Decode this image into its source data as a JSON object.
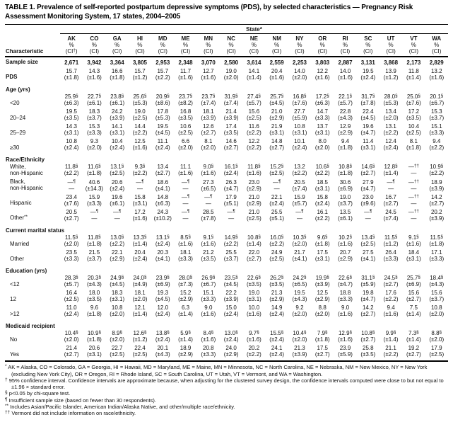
{
  "title": "TABLE 1. Prevalence of self-reported postpartum depressive symptoms (PDS), by selected characteristics — Pregnancy Risk Assessment Monitoring System, 17 states, 2004–2005",
  "table": {
    "char_header": "Characteristic",
    "state_spanner": "State*",
    "subheader_pct": "%",
    "subheader_ci_first": "(CI†)",
    "subheader_ci": "(CI)",
    "columns": [
      "AK",
      "CO",
      "GA",
      "HI",
      "MD",
      "ME",
      "MN",
      "NC",
      "NE",
      "NM",
      "NY",
      "OR",
      "RI",
      "SC",
      "UT",
      "VT",
      "WA"
    ],
    "rows": [
      {
        "label": "Sample size",
        "label_bold": true,
        "values_bold": true,
        "values": [
          "2,671",
          "3,942",
          "3,364",
          "3,805",
          "2,953",
          "2,348",
          "3,070",
          "2,580",
          "3,614",
          "2,559",
          "2,253",
          "3,803",
          "2,887",
          "3,131",
          "3,868",
          "2,173",
          "2,829"
        ]
      },
      {
        "label": "PDS",
        "label_bold": true,
        "values": [
          "15.7",
          "14.3",
          "16.6",
          "15.7",
          "15.7",
          "11.7",
          "12.7",
          "19.0",
          "14.1",
          "20.4",
          "14.0",
          "12.2",
          "14.0",
          "19.5",
          "13.9",
          "11.8",
          "13.2"
        ],
        "cis": [
          "(±1.8)",
          "(±1.6)",
          "(±1.8)",
          "(±1.2)",
          "(±2.2)",
          "(±1.6)",
          "(±1.6)",
          "(±2.0)",
          "(±1.4)",
          "(±1.6)",
          "(±2.0)",
          "(±1.6)",
          "(±1.6)",
          "(±2.4)",
          "(±1.2)",
          "(±1.4)",
          "(±1.6)"
        ]
      },
      {
        "section": "Age (yrs)"
      },
      {
        "label": "<20",
        "indent": true,
        "values": [
          "25.9§",
          "22.7§",
          "23.8§",
          "25.6§",
          "20.9§",
          "23.7§",
          "23.7§",
          "31.9§",
          "27.4§",
          "25.7§",
          "16.8§",
          "17.2§",
          "22.1§",
          "31.7§",
          "28.0§",
          "25.0§",
          "20.1§"
        ],
        "cis": [
          "(±6.3)",
          "(±6.1)",
          "(±6.1)",
          "(±5.3)",
          "(±8.6)",
          "(±8.2)",
          "(±7.4)",
          "(±7.4)",
          "(±5.7)",
          "(±4.5)",
          "(±7.6)",
          "(±6.3)",
          "(±5.7)",
          "(±7.8)",
          "(±5.3)",
          "(±7.6)",
          "(±6.7)"
        ]
      },
      {
        "label": "20–24",
        "indent": true,
        "values": [
          "19.5",
          "18.3",
          "24.2",
          "19.0",
          "17.8",
          "16.8",
          "18.1",
          "21.4",
          "15.6",
          "21.0",
          "27.7",
          "14.7",
          "22.8",
          "22.4",
          "13.4",
          "17.2",
          "15.3"
        ],
        "cis": [
          "(±3.5)",
          "(±3.7)",
          "(±3.9)",
          "(±2.5)",
          "(±5.3)",
          "(±3.5)",
          "(±3.9)",
          "(±3.9)",
          "(±2.5)",
          "(±2.9)",
          "(±5.9)",
          "(±3.3)",
          "(±4.3)",
          "(±4.5)",
          "(±2.0)",
          "(±3.5)",
          "(±3.7)"
        ]
      },
      {
        "label": "25–29",
        "indent": true,
        "values": [
          "14.3",
          "15.3",
          "14.1",
          "14.4",
          "19.5",
          "10.6",
          "12.6",
          "17.4",
          "11.6",
          "21.9",
          "10.8",
          "13.7",
          "12.9",
          "19.6",
          "13.1",
          "10.4",
          "15.1"
        ],
        "cis": [
          "(±3.1)",
          "(±3.3)",
          "(±3.1)",
          "(±2.2)",
          "(±4.5)",
          "(±2.5)",
          "(±2.7)",
          "(±3.5)",
          "(±2.2)",
          "(±3.1)",
          "(±3.1)",
          "(±3.1)",
          "(±2.9)",
          "(±4.7)",
          "(±2.2)",
          "(±2.5)",
          "(±3.3)"
        ]
      },
      {
        "label": "≥30",
        "indent": true,
        "values": [
          "10.8",
          "9.3",
          "10.4",
          "12.5",
          "11.1",
          "6.6",
          "8.1",
          "14.6",
          "12.2",
          "14.8",
          "10.1",
          "8.0",
          "9.4",
          "11.4",
          "12.4",
          "8.1",
          "9.4"
        ],
        "cis": [
          "(±2.4)",
          "(±2.0)",
          "(±2.4)",
          "(±1.6)",
          "(±2.4)",
          "(±2.0)",
          "(±2.0)",
          "(±2.7)",
          "(±2.2)",
          "(±2.7)",
          "(±2.4)",
          "(±2.0)",
          "(±1.8)",
          "(±3.1)",
          "(±2.4)",
          "(±1.8)",
          "(±2.2)"
        ]
      },
      {
        "section": "Race/Ethnicity"
      },
      {
        "label": "White,\nnon-Hispanic",
        "indent": true,
        "values": [
          "11.8§",
          "11.6§",
          "13.1§",
          "9.3§",
          "13.4",
          "11.1",
          "9.0§",
          "16.1§",
          "11.8§",
          "15.2§",
          "13.2",
          "10.6§",
          "10.8§",
          "14.6§",
          "12.8§",
          "—††",
          "10.9§"
        ],
        "cis": [
          "(±2.2)",
          "(±1.8)",
          "(±2.5)",
          "(±2.2)",
          "(±2.7)",
          "(±1.6)",
          "(±1.6)",
          "(±2.4)",
          "(±1.6)",
          "(±2.5)",
          "(±2.2)",
          "(±2.2)",
          "(±1.8)",
          "(±2.7)",
          "(±1.4)",
          "—",
          "(±2.2)"
        ]
      },
      {
        "label": "Black,\nnon-Hispanic",
        "indent": true,
        "values": [
          "—¶",
          "40.6",
          "20.6",
          "—¶",
          "18.6",
          "—¶",
          "27.3",
          "26.3",
          "23.0",
          "—¶",
          "20.5",
          "18.5",
          "30.6",
          "27.9",
          "—¶",
          "—††",
          "18.9"
        ],
        "cis": [
          "—",
          "(±14.3)",
          "(±2.4)",
          "—",
          "(±4.1)",
          "—",
          "(±6.5)",
          "(±4.7)",
          "(±2.9)",
          "—",
          "(±7.4)",
          "(±3.1)",
          "(±6.9)",
          "(±4.7)",
          "—",
          "—",
          "(±3.9)"
        ]
      },
      {
        "label": "Hispanic",
        "indent": true,
        "values": [
          "23.4",
          "15.9",
          "19.6",
          "15.8",
          "14.8",
          "—¶",
          "—¶",
          "17.9",
          "21.0",
          "22.1",
          "15.9",
          "15.8",
          "19.0",
          "23.0",
          "16.7",
          "—††",
          "14.2"
        ],
        "cis": [
          "(±7.6)",
          "(±3.3)",
          "(±6.1)",
          "(±3.1)",
          "(±6.3)",
          "—",
          "—",
          "(±5.1)",
          "(±2.9)",
          "(±2.4)",
          "(±5.7)",
          "(±2.4)",
          "(±3.7)",
          "(±9.6)",
          "(±2.7)",
          "—",
          "(±2.7)"
        ]
      },
      {
        "label": "Other**",
        "indent": true,
        "values": [
          "20.5",
          "—¶",
          "—¶",
          "17.2",
          "24.3",
          "—¶",
          "28.5",
          "—¶",
          "21.0",
          "25.5",
          "—¶",
          "16.1",
          "13.5",
          "—¶",
          "24.5",
          "—††",
          "20.2"
        ],
        "cis": [
          "(±2.7)",
          "—",
          "—",
          "(±1.6)",
          "(±10.2)",
          "—",
          "(±7.8)",
          "—",
          "(±2.5)",
          "(±5.1)",
          "—",
          "(±2.2)",
          "(±6.1)",
          "—",
          "(±7.4)",
          "—",
          "(±3.9)"
        ]
      },
      {
        "section": "Current marital status"
      },
      {
        "label": "Married",
        "indent": true,
        "values": [
          "11.5§",
          "11.8§",
          "13.0§",
          "13.3§",
          "13.1§",
          "8.5§",
          "9.1§",
          "14.9§",
          "10.8§",
          "16.0§",
          "10.3§",
          "9.6§",
          "10.2§",
          "13.4§",
          "11.5§",
          "9.1§",
          "11.5§"
        ],
        "cis": [
          "(±2.0)",
          "(±1.8)",
          "(±2.2)",
          "(±1.4)",
          "(±2.4)",
          "(±1.6)",
          "(±1.6)",
          "(±2.2)",
          "(±1.4)",
          "(±2.2)",
          "(±2.0)",
          "(±1.8)",
          "(±1.6)",
          "(±2.5)",
          "(±1.2)",
          "(±1.6)",
          "(±1.8)"
        ]
      },
      {
        "label": "Other",
        "indent": true,
        "values": [
          "23.5",
          "21.5",
          "22.1",
          "20.4",
          "20.3",
          "18.1",
          "21.2",
          "25.5",
          "22.0",
          "24.9",
          "21.7",
          "17.5",
          "20.7",
          "27.5",
          "26.4",
          "18.4",
          "17.1"
        ],
        "cis": [
          "(±3.3)",
          "(±3.7)",
          "(±2.9)",
          "(±2.4)",
          "(±4.1)",
          "(±3.3)",
          "(±3.5)",
          "(±3.7)",
          "(±2.7)",
          "(±2.5)",
          "(±4.1)",
          "(±3.1)",
          "(±2.9)",
          "(±4.1)",
          "(±3.3)",
          "(±3.1)",
          "(±3.3)"
        ]
      },
      {
        "section": "Education (yrs)"
      },
      {
        "label": "<12",
        "indent": true,
        "values": [
          "28.3§",
          "20.3§",
          "24.9§",
          "24.0§",
          "23.9§",
          "28.0§",
          "26.9§",
          "23.5§",
          "22.6§",
          "26.2§",
          "24.2§",
          "19.9§",
          "22.6§",
          "31.1§",
          "24.5§",
          "25.7§",
          "18.4§"
        ],
        "cis": [
          "(±5.7)",
          "(±4.3)",
          "(±4.5)",
          "(±4.9)",
          "(±6.9)",
          "(±7.3)",
          "(±6.7)",
          "(±4.5)",
          "(±3.5)",
          "(±3.5)",
          "(±6.5)",
          "(±3.9)",
          "(±4.7)",
          "(±5.9)",
          "(±2.7)",
          "(±6.9)",
          "(±4.3)"
        ]
      },
      {
        "label": "12",
        "indent": true,
        "values": [
          "16.4",
          "18.0",
          "18.3",
          "18.1",
          "19.3",
          "15.2",
          "15.1",
          "22.2",
          "19.0",
          "21.3",
          "19.5",
          "12.5",
          "18.8",
          "19.8",
          "17.6",
          "15.6",
          "15.6"
        ],
        "cis": [
          "(±2.5)",
          "(±3.5)",
          "(±3.1)",
          "(±2.0)",
          "(±4.5)",
          "(±2.9)",
          "(±3.3)",
          "(±3.9)",
          "(±3.1)",
          "(±2.9)",
          "(±4.3)",
          "(±2.9)",
          "(±3.3)",
          "(±4.7)",
          "(±2.2)",
          "(±2.7)",
          "(±3.7)"
        ]
      },
      {
        "label": ">12",
        "indent": true,
        "values": [
          "11.0",
          "9.6",
          "10.8",
          "12.1",
          "12.0",
          "6.3",
          "9.0",
          "15.0",
          "10.0",
          "14.9",
          "9.2",
          "8.8",
          "9.0",
          "14.2",
          "9.4",
          "7.5",
          "10.8"
        ],
        "cis": [
          "(±2.4)",
          "(±1.8)",
          "(±2.0)",
          "(±1.4)",
          "(±2.4)",
          "(±1.4)",
          "(±1.6)",
          "(±2.4)",
          "(±1.6)",
          "(±2.4)",
          "(±2.0)",
          "(±2.0)",
          "(±1.6)",
          "(±2.7)",
          "(±1.6)",
          "(±1.4)",
          "(±2.0)"
        ]
      },
      {
        "section": "Medicaid recipient"
      },
      {
        "label": "No",
        "indent": true,
        "values": [
          "10.4§",
          "10.9§",
          "8.9§",
          "12.6§",
          "13.8§",
          "5.9§",
          "8.4§",
          "13.0§",
          "9.7§",
          "15.5§",
          "10.4§",
          "7.9§",
          "12.9§",
          "10.8§",
          "9.9§",
          "7.3§",
          "8.8§"
        ],
        "cis": [
          "(±2.0)",
          "(±1.8)",
          "(±2.0)",
          "(±1.2)",
          "(±2.4)",
          "(±1.4)",
          "(±1.6)",
          "(±2.4)",
          "(±1.6)",
          "(±2.4)",
          "(±2.0)",
          "(±1.8)",
          "(±1.6)",
          "(±2.7)",
          "(±1.4)",
          "(±1.4)",
          "(±2.0)"
        ]
      },
      {
        "label": "Yes",
        "indent": true,
        "values": [
          "21.4",
          "20.6",
          "22.7",
          "22.4",
          "20.1",
          "18.9",
          "20.8",
          "24.0",
          "20.2",
          "24.1",
          "21.3",
          "17.5",
          "23.9",
          "25.8",
          "21.1",
          "19.2",
          "17.9"
        ],
        "cis": [
          "(±2.7)",
          "(±3.1)",
          "(±2.5)",
          "(±2.5)",
          "(±4.3)",
          "(±2.9)",
          "(±3.3)",
          "(±2.9)",
          "(±2.2)",
          "(±2.4)",
          "(±3.9)",
          "(±2.7)",
          "(±5.9)",
          "(±3.5)",
          "(±2.2)",
          "(±2.7)",
          "(±2.5)"
        ]
      }
    ]
  },
  "footnotes": [
    {
      "marker": "*",
      "text": "AK = Alaska, CO = Colorado, GA = Georgia, HI = Hawaii, MD = Maryland, ME = Maine, MN = Minnesota, NC = North Carolina, NE = Nebraska, NM = New Mexico, NY = New York (excluding New York City), OR = Oregon, RI = Rhode Island, SC = South Carolina, UT = Utah, VT = Vermont, and WA = Washington."
    },
    {
      "marker": "†",
      "text": "95% confidence interval. Confidence intervals are approximate because, when adjusting for the clustered survey design, the confidence intervals computed were close to but not equal to ±1.96 × standard error."
    },
    {
      "marker": "§",
      "text": "p<0.05 by chi-square test."
    },
    {
      "marker": "¶",
      "text": "Insufficient sample size (based on fewer than 30 respondents)."
    },
    {
      "marker": "**",
      "text": "Includes Asian/Pacific Islander, American Indian/Alaska Native, and other/multiple race/ethnicity."
    },
    {
      "marker": "††",
      "text": "Vermont did not include information on race/ethnicity."
    }
  ]
}
